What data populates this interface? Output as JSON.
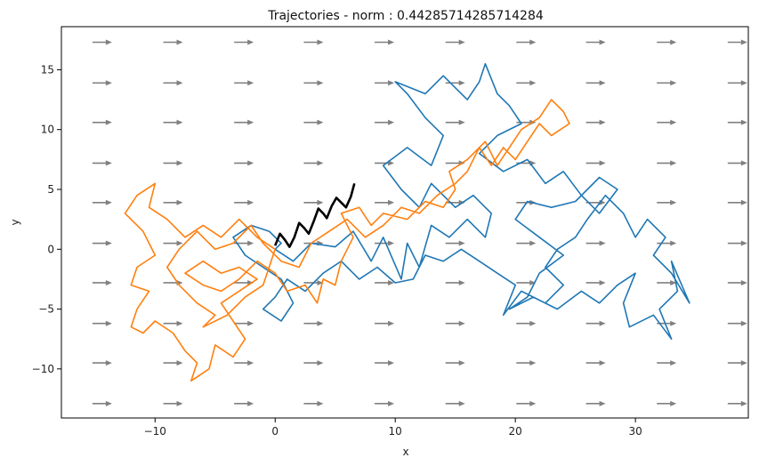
{
  "chart_data": {
    "type": "line",
    "title": "Trajectories - norm : 0.44285714285714284",
    "xlabel": "x",
    "ylabel": "y",
    "xlim": [
      -17.8,
      39.4
    ],
    "ylim": [
      -14.1,
      18.6
    ],
    "xticks": [
      -10,
      0,
      10,
      20,
      30
    ],
    "yticks": [
      -10,
      -5,
      0,
      5,
      10,
      15
    ],
    "grid": false,
    "legend": "none",
    "colors": {
      "blue": "#1f77b4",
      "orange": "#ff7f0e",
      "black": "#000000",
      "arrow": "#808080"
    },
    "quiver": {
      "x": [
        -14.4,
        -8.5,
        -2.6,
        3.2,
        9.1,
        15.0,
        20.9,
        26.7,
        32.6,
        38.5
      ],
      "y": [
        -12.9,
        -9.5,
        -6.2,
        -2.8,
        0.5,
        3.9,
        7.2,
        10.6,
        13.9,
        17.3
      ],
      "direction": "right"
    },
    "series": [
      {
        "color": "blue",
        "points": [
          [
            0,
            0
          ],
          [
            1.5,
            -1
          ],
          [
            3,
            0.5
          ],
          [
            5,
            0.2
          ],
          [
            6.5,
            1.5
          ],
          [
            8,
            -1
          ],
          [
            9,
            1
          ],
          [
            10.5,
            -2.5
          ],
          [
            11,
            0.5
          ],
          [
            12,
            -1.5
          ],
          [
            13,
            2
          ],
          [
            14.5,
            1
          ],
          [
            16,
            2.5
          ],
          [
            17.5,
            1
          ],
          [
            18,
            3
          ],
          [
            16.5,
            4.5
          ],
          [
            15,
            3.5
          ],
          [
            13,
            5.5
          ],
          [
            12,
            3.5
          ],
          [
            10.5,
            5
          ],
          [
            9,
            7
          ],
          [
            11,
            8.5
          ],
          [
            13,
            7
          ],
          [
            14,
            9.5
          ],
          [
            12.5,
            11
          ],
          [
            11,
            13
          ],
          [
            10,
            14
          ],
          [
            12.5,
            13
          ],
          [
            14,
            14.5
          ],
          [
            16,
            12.5
          ],
          [
            17,
            14
          ],
          [
            17.5,
            15.5
          ],
          [
            18.5,
            13
          ],
          [
            19.5,
            12
          ],
          [
            20.5,
            10.5
          ],
          [
            18.5,
            9.5
          ],
          [
            17,
            8
          ],
          [
            19,
            6.5
          ],
          [
            21,
            7.5
          ],
          [
            22.5,
            5.5
          ],
          [
            24,
            6.5
          ],
          [
            25.5,
            4.5
          ],
          [
            27,
            3
          ],
          [
            28.5,
            5
          ],
          [
            27,
            6
          ],
          [
            25,
            4
          ],
          [
            23,
            3.5
          ],
          [
            21,
            4
          ],
          [
            20,
            2.5
          ],
          [
            22,
            1
          ],
          [
            24,
            -0.5
          ],
          [
            22,
            -2
          ],
          [
            21,
            -4
          ],
          [
            19.5,
            -5
          ],
          [
            21.5,
            -4
          ],
          [
            23.5,
            -5
          ],
          [
            25.5,
            -3.5
          ],
          [
            27,
            -4.5
          ],
          [
            28.5,
            -3
          ],
          [
            30,
            -2
          ],
          [
            29,
            -4.5
          ],
          [
            29.5,
            -6.5
          ],
          [
            31.5,
            -5.5
          ],
          [
            33,
            -7.5
          ],
          [
            32,
            -5
          ],
          [
            33.5,
            -3.5
          ],
          [
            33,
            -1
          ],
          [
            34.5,
            -4.5
          ],
          [
            33,
            -2
          ],
          [
            31.5,
            -0.5
          ],
          [
            32.5,
            1
          ],
          [
            31,
            2.5
          ],
          [
            30,
            1
          ],
          [
            29,
            3
          ],
          [
            27.5,
            4.5
          ],
          [
            26,
            2.5
          ],
          [
            25,
            1
          ],
          [
            23.5,
            0
          ],
          [
            22.5,
            -1.5
          ],
          [
            24,
            -3
          ],
          [
            22.5,
            -4.5
          ],
          [
            20.5,
            -3.5
          ],
          [
            19,
            -5.5
          ],
          [
            20,
            -3
          ],
          [
            18.5,
            -2
          ],
          [
            17,
            -1
          ],
          [
            15.5,
            0
          ],
          [
            14,
            -1
          ],
          [
            12.5,
            -0.5
          ],
          [
            11.5,
            -2.5
          ],
          [
            10,
            -2.8
          ],
          [
            8.5,
            -1.5
          ],
          [
            7,
            -2.5
          ],
          [
            5.5,
            -1
          ],
          [
            4,
            -2
          ],
          [
            2.5,
            -3.5
          ],
          [
            1,
            -2.5
          ],
          [
            0,
            -4
          ],
          [
            -1,
            -5
          ],
          [
            0.5,
            -6
          ],
          [
            1.5,
            -4.5
          ],
          [
            0.5,
            -2.5
          ],
          [
            -1,
            -1.5
          ],
          [
            -2.5,
            -0.5
          ],
          [
            -3.5,
            1
          ],
          [
            -2,
            2
          ],
          [
            -0.5,
            1.5
          ],
          [
            0.5,
            0.5
          ],
          [
            0,
            0
          ]
        ]
      },
      {
        "color": "orange",
        "points": [
          [
            0,
            0
          ],
          [
            -1.5,
            1
          ],
          [
            -3,
            2.5
          ],
          [
            -4.5,
            1
          ],
          [
            -6,
            2
          ],
          [
            -7.5,
            1
          ],
          [
            -9,
            2.5
          ],
          [
            -10.5,
            3.5
          ],
          [
            -10,
            5.5
          ],
          [
            -11.5,
            4.5
          ],
          [
            -12.5,
            3
          ],
          [
            -11,
            1.5
          ],
          [
            -10,
            -0.5
          ],
          [
            -11.5,
            -1.5
          ],
          [
            -12,
            -3
          ],
          [
            -10.5,
            -3.5
          ],
          [
            -11.5,
            -5
          ],
          [
            -12,
            -6.5
          ],
          [
            -11,
            -7
          ],
          [
            -10,
            -6
          ],
          [
            -8.5,
            -7
          ],
          [
            -7.5,
            -8.5
          ],
          [
            -6.5,
            -9.5
          ],
          [
            -7,
            -11
          ],
          [
            -5.5,
            -10
          ],
          [
            -5,
            -8
          ],
          [
            -3.5,
            -9
          ],
          [
            -2.5,
            -7.5
          ],
          [
            -3.5,
            -6
          ],
          [
            -4.5,
            -4.5
          ],
          [
            -3,
            -3.5
          ],
          [
            -1.5,
            -2.5
          ],
          [
            -3,
            -1.5
          ],
          [
            -4.5,
            -2
          ],
          [
            -6,
            -1
          ],
          [
            -7.5,
            -2
          ],
          [
            -6,
            -3
          ],
          [
            -4.5,
            -3.5
          ],
          [
            -3,
            -2.5
          ],
          [
            -1.5,
            -1
          ],
          [
            0,
            -2
          ],
          [
            1,
            -3.5
          ],
          [
            2.5,
            -3
          ],
          [
            3.5,
            -4.5
          ],
          [
            4,
            -2.5
          ],
          [
            5,
            -3
          ],
          [
            5.5,
            -1
          ],
          [
            6.5,
            1
          ],
          [
            5.5,
            3
          ],
          [
            7,
            3.5
          ],
          [
            8,
            2
          ],
          [
            9,
            3
          ],
          [
            11,
            2.5
          ],
          [
            12.5,
            4
          ],
          [
            14,
            3.5
          ],
          [
            15,
            5
          ],
          [
            14.5,
            6.5
          ],
          [
            16,
            7.5
          ],
          [
            17.5,
            9
          ],
          [
            18.5,
            7
          ],
          [
            19.5,
            8.5
          ],
          [
            20.5,
            10
          ],
          [
            22,
            11
          ],
          [
            23,
            12.5
          ],
          [
            24,
            11.5
          ],
          [
            24.5,
            10.5
          ],
          [
            23,
            9.5
          ],
          [
            22,
            10.5
          ],
          [
            21,
            9
          ],
          [
            20,
            7.5
          ],
          [
            19,
            8.5
          ],
          [
            18,
            7
          ],
          [
            17,
            8.5
          ],
          [
            16,
            6.5
          ],
          [
            15,
            5.5
          ],
          [
            13.5,
            4.5
          ],
          [
            12,
            3
          ],
          [
            10.5,
            3.5
          ],
          [
            9,
            2
          ],
          [
            7.5,
            1
          ],
          [
            6,
            2.5
          ],
          [
            4.5,
            1.5
          ],
          [
            3,
            0.5
          ],
          [
            2,
            -1.5
          ],
          [
            0.5,
            -1
          ],
          [
            -1,
            0.5
          ],
          [
            -2,
            2
          ],
          [
            -3.5,
            0.5
          ],
          [
            -5,
            0
          ],
          [
            -6.5,
            1.5
          ],
          [
            -8,
            0
          ],
          [
            -9,
            -1.5
          ],
          [
            -8,
            -3
          ],
          [
            -6.5,
            -4.5
          ],
          [
            -5,
            -5.5
          ],
          [
            -6,
            -6.5
          ],
          [
            -4,
            -5.5
          ],
          [
            -2.5,
            -4
          ],
          [
            -1,
            -3
          ],
          [
            0,
            0
          ]
        ]
      },
      {
        "color": "black",
        "points": [
          [
            0,
            0.3
          ],
          [
            0.4,
            1.3
          ],
          [
            0.8,
            0.8
          ],
          [
            1.2,
            0.2
          ],
          [
            1.6,
            1.0
          ],
          [
            2.0,
            2.2
          ],
          [
            2.4,
            1.8
          ],
          [
            2.8,
            1.3
          ],
          [
            3.2,
            2.3
          ],
          [
            3.6,
            3.4
          ],
          [
            4.0,
            3.0
          ],
          [
            4.3,
            2.6
          ],
          [
            4.7,
            3.6
          ],
          [
            5.1,
            4.3
          ],
          [
            5.5,
            3.9
          ],
          [
            5.9,
            3.5
          ],
          [
            6.3,
            4.4
          ],
          [
            6.6,
            5.5
          ]
        ]
      }
    ]
  }
}
